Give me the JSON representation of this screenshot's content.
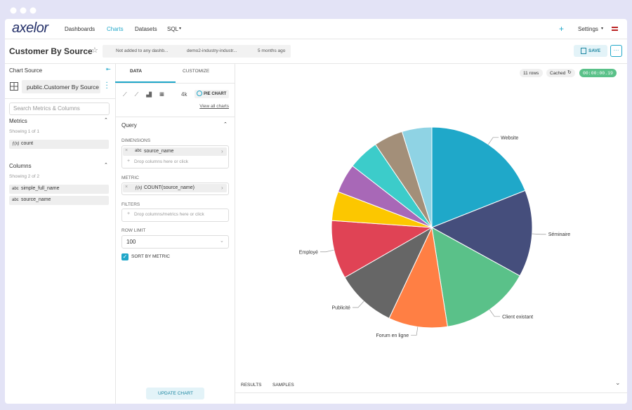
{
  "header": {
    "logo": "axelor",
    "nav": [
      "Dashboards",
      "Charts",
      "Datasets",
      "SQL"
    ],
    "settings": "Settings"
  },
  "titlebar": {
    "title": "Customer By Source",
    "meta": [
      "Not added to any dashb...",
      "demo2-industry-industr...",
      "5 months ago"
    ],
    "save": "SAVE"
  },
  "source_panel": {
    "heading": "Chart Source",
    "dataset": "public.Customer By Source",
    "search_placeholder": "Search Metrics & Columns",
    "metrics": {
      "heading": "Metrics",
      "showing": "Showing 1 of 1",
      "items": [
        {
          "type": "ƒ(x)",
          "name": "count"
        }
      ]
    },
    "columns": {
      "heading": "Columns",
      "showing": "Showing 2 of 2",
      "items": [
        {
          "type": "abc",
          "name": "simple_full_name"
        },
        {
          "type": "abc",
          "name": "source_name"
        }
      ]
    }
  },
  "control_panel": {
    "tabs": [
      "DATA",
      "CUSTOMIZE"
    ],
    "viz_4k": "4k",
    "viz_type": "PIE CHART",
    "view_all": "View all charts",
    "query": "Query",
    "dimensions": {
      "label": "DIMENSIONS",
      "type": "abc",
      "value": "source_name",
      "drop": "Drop columns here or click"
    },
    "metric": {
      "label": "METRIC",
      "type": "ƒ(x)",
      "value": "COUNT(source_name)"
    },
    "filters": {
      "label": "FILTERS",
      "drop": "Drop columns/metrics here or click"
    },
    "row_limit": {
      "label": "ROW LIMIT",
      "value": "100"
    },
    "sort_by_metric": "SORT BY METRIC",
    "update": "UPDATE CHART"
  },
  "result_bar": {
    "rows": "11 rows",
    "cached": "Cached",
    "timer": "00:00:00.19",
    "tabs": [
      "RESULTS",
      "SAMPLES"
    ]
  },
  "chart_data": {
    "type": "pie",
    "categories": [
      "Website",
      "Séminaire",
      "Client existant",
      "Forum en ligne",
      "Publicité",
      "Employé",
      null,
      null,
      null,
      null,
      null
    ],
    "values": [
      19,
      14,
      14.5,
      9.5,
      9.7,
      9.4,
      4.7,
      4.7,
      5,
      4.7,
      4.8
    ],
    "colors": [
      "#1fa8c9",
      "#454e7c",
      "#5ac189",
      "#ff7f44",
      "#666666",
      "#e04355",
      "#fcc700",
      "#a868b7",
      "#3cccca",
      "#a38f79",
      "#8fd3e4"
    ]
  }
}
